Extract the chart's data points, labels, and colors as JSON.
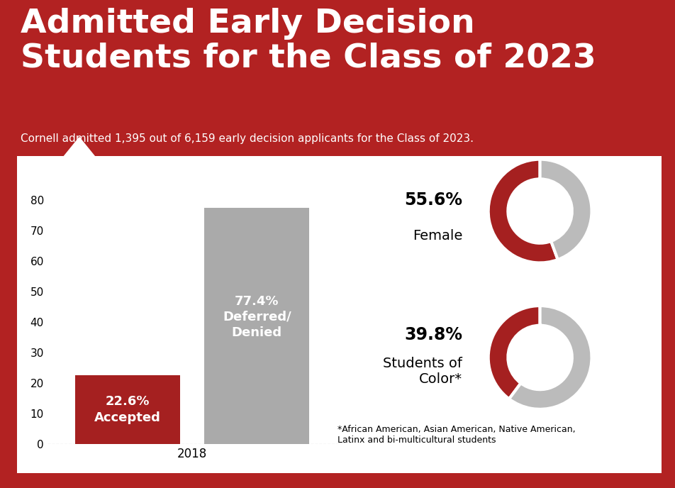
{
  "title_line1": "Admitted Early Decision",
  "title_line2": "Students for the Class of 2023",
  "subtitle": "Cornell admitted 1,395 out of 6,159 early decision applicants for the Class of 2023.",
  "bg_color": "#B22222",
  "panel_color": "#FFFFFF",
  "bar1_value": 22.6,
  "bar1_label_pct": "22.6%",
  "bar1_label_text": "Accepted",
  "bar1_color": "#A52020",
  "bar2_value": 77.4,
  "bar2_label_pct": "77.4%",
  "bar2_label_text": "Deferred/\nDenied",
  "bar2_color": "#AAAAAA",
  "bar_x_label": "2018",
  "yticks": [
    0,
    10,
    20,
    30,
    40,
    50,
    60,
    70,
    80
  ],
  "donut1_pct": 55.6,
  "donut1_label_pct": "55.6%",
  "donut1_label_text": "Female",
  "donut2_pct": 39.8,
  "donut2_label_pct": "39.8%",
  "donut2_label_text": "Students of\nColor*",
  "donut_color_main": "#A52020",
  "donut_color_rest": "#BBBBBB",
  "footnote": "*African American, Asian American, Native American,\nLatinx and bi-multicultural students",
  "title_fontsize": 34,
  "subtitle_fontsize": 11,
  "bar_label_fontsize": 13,
  "donut_pct_fontsize": 17,
  "donut_text_fontsize": 14
}
